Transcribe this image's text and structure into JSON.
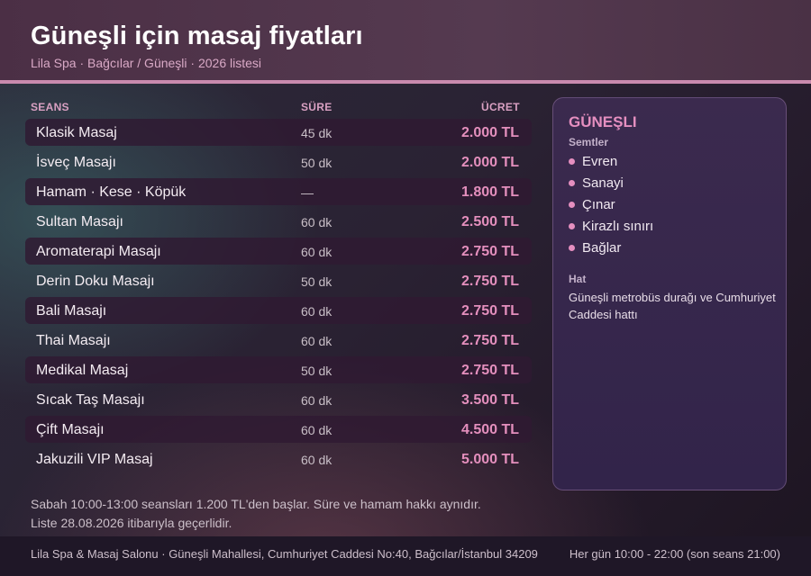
{
  "header": {
    "title": "Güneşli için masaj fiyatları",
    "subtitle": "Lila Spa · Bağcılar / Güneşli · 2026 listesi"
  },
  "table": {
    "columns": {
      "session": "SEANS",
      "duration": "SÜRE",
      "price": "ÜCRET"
    },
    "rows": [
      {
        "name": "Klasik Masaj",
        "duration": "45 dk",
        "price": "2.000 TL"
      },
      {
        "name": "İsveç Masajı",
        "duration": "50 dk",
        "price": "2.000 TL"
      },
      {
        "name": "Hamam · Kese · Köpük",
        "duration": "—",
        "price": "1.800 TL"
      },
      {
        "name": "Sultan Masajı",
        "duration": "60 dk",
        "price": "2.500 TL"
      },
      {
        "name": "Aromaterapi Masajı",
        "duration": "60 dk",
        "price": "2.750 TL"
      },
      {
        "name": "Derin Doku Masajı",
        "duration": "50 dk",
        "price": "2.750 TL"
      },
      {
        "name": "Bali Masajı",
        "duration": "60 dk",
        "price": "2.750 TL"
      },
      {
        "name": "Thai Masajı",
        "duration": "60 dk",
        "price": "2.750 TL"
      },
      {
        "name": "Medikal Masaj",
        "duration": "50 dk",
        "price": "2.750 TL"
      },
      {
        "name": "Sıcak Taş Masajı",
        "duration": "60 dk",
        "price": "3.500 TL"
      },
      {
        "name": "Çift Masajı",
        "duration": "60 dk",
        "price": "4.500 TL"
      },
      {
        "name": "Jakuzili VIP Masaj",
        "duration": "60 dk",
        "price": "5.000 TL"
      }
    ]
  },
  "panel": {
    "title": "GÜNEŞLI",
    "districts_label": "Semtler",
    "districts": [
      "Evren",
      "Sanayi",
      "Çınar",
      "Kirazlı sınırı",
      "Bağlar"
    ],
    "route_label": "Hat",
    "route": "Güneşli metrobüs durağı ve Cumhuriyet Caddesi hattı"
  },
  "notes": {
    "line1": "Sabah 10:00-13:00 seansları 1.200 TL'den başlar. Süre ve hamam hakkı aynıdır.",
    "line2": "Liste 28.08.2026 itibarıyla geçerlidir."
  },
  "footer": {
    "address": "Lila Spa & Masaj Salonu · Güneşli Mahallesi, Cumhuriyet Caddesi No:40, Bağcılar/İstanbul 34209",
    "hours": "Her gün 10:00 - 22:00 (son seans 21:00)"
  },
  "colors": {
    "accent": "#e58fc0",
    "header_bg": "#4b2f45",
    "header_line": "#c98aae",
    "row_shade": "#301a32",
    "panel_bg": "#3b2a4e"
  }
}
